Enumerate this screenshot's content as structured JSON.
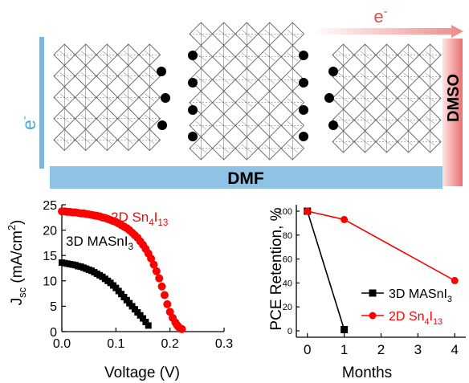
{
  "diagram": {
    "left_electron_label": "e",
    "top_electron_label": "e",
    "electron_sign": "-",
    "bottom_bar_label": "DMF",
    "right_bar_label": "DMSO",
    "colors": {
      "left_bar": "#7ab8e2",
      "bottom_bar": "#8ec3e6",
      "right_bar_gradient": [
        "#fbe3e3",
        "#ec6f6f"
      ],
      "top_arrow_gradient": [
        "#ffffff",
        "#ee8a8a"
      ],
      "electron_label_blue": "#4da6db",
      "electron_label_red": "#e84c4c",
      "lattice_stroke": "#666666",
      "dots": "#000000"
    }
  },
  "chart_data": [
    {
      "type": "scatter",
      "ylabel_main": "J",
      "ylabel_sub": "sc",
      "ylabel_rest": " (mA/cm",
      "ylabel_sup": "2",
      "ylabel_close": ")",
      "xlabel": "Voltage (V)",
      "xlim": [
        0,
        0.3
      ],
      "ylim": [
        0,
        25
      ],
      "xticks": [
        "0.0",
        "0.1",
        "0.2",
        "0.3"
      ],
      "yticks": [
        "0",
        "5",
        "10",
        "15",
        "20",
        "25"
      ],
      "annotations": [
        {
          "base": "2D Sn",
          "sub1": "4",
          "mid": "I",
          "sub2": "13",
          "color": "#ff0000"
        },
        {
          "base": "3D MASnI",
          "sub1": "3",
          "mid": "",
          "sub2": "",
          "color": "#000000"
        }
      ],
      "series": [
        {
          "color": "#ff0000",
          "marker": "circle",
          "x": [
            0.0,
            0.005,
            0.01,
            0.015,
            0.02,
            0.025,
            0.03,
            0.035,
            0.04,
            0.045,
            0.05,
            0.055,
            0.06,
            0.065,
            0.07,
            0.075,
            0.08,
            0.085,
            0.09,
            0.095,
            0.1,
            0.105,
            0.11,
            0.115,
            0.12,
            0.125,
            0.13,
            0.135,
            0.14,
            0.145,
            0.15,
            0.155,
            0.16,
            0.165,
            0.17,
            0.175,
            0.18,
            0.185,
            0.19,
            0.195,
            0.2,
            0.205,
            0.21,
            0.213,
            0.216,
            0.219,
            0.222
          ],
          "y": [
            23.7,
            23.7,
            23.6,
            23.6,
            23.5,
            23.5,
            23.4,
            23.3,
            23.3,
            23.2,
            23.1,
            23.0,
            22.9,
            22.8,
            22.7,
            22.5,
            22.4,
            22.2,
            22.0,
            21.8,
            21.6,
            21.3,
            21.0,
            20.7,
            20.4,
            20.0,
            19.5,
            19.0,
            18.5,
            17.8,
            17.1,
            16.3,
            15.4,
            14.4,
            13.2,
            11.9,
            10.5,
            8.9,
            7.2,
            5.4,
            3.9,
            2.7,
            1.8,
            1.3,
            0.9,
            0.6,
            0.5
          ]
        },
        {
          "color": "#000000",
          "marker": "square",
          "x": [
            0.0,
            0.005,
            0.01,
            0.015,
            0.02,
            0.025,
            0.03,
            0.035,
            0.04,
            0.045,
            0.05,
            0.055,
            0.06,
            0.065,
            0.07,
            0.075,
            0.08,
            0.085,
            0.09,
            0.095,
            0.1,
            0.105,
            0.11,
            0.115,
            0.12,
            0.125,
            0.13,
            0.135,
            0.14,
            0.145,
            0.15,
            0.155,
            0.16
          ],
          "y": [
            13.6,
            13.5,
            13.4,
            13.3,
            13.2,
            13.1,
            12.9,
            12.8,
            12.6,
            12.4,
            12.2,
            12.0,
            11.7,
            11.4,
            11.1,
            10.8,
            10.4,
            10.0,
            9.6,
            9.1,
            8.6,
            8.0,
            7.4,
            6.8,
            6.2,
            5.6,
            5.0,
            4.4,
            3.8,
            3.2,
            2.6,
            1.9,
            1.2
          ]
        }
      ]
    },
    {
      "type": "line",
      "ylabel": "PCE Retention, %",
      "xlabel": "Months",
      "xlim": [
        -0.3,
        4.3
      ],
      "ylim": [
        0,
        100
      ],
      "xticks": [
        "0",
        "1",
        "2",
        "3",
        "4"
      ],
      "yticks": [
        "0",
        "20",
        "40",
        "60",
        "80",
        "100"
      ],
      "series": [
        {
          "base": "3D MASnI",
          "sub1": "3",
          "mid": "",
          "sub2": "",
          "color": "#000000",
          "marker": "square",
          "x": [
            0,
            1
          ],
          "y": [
            100,
            1
          ]
        },
        {
          "base": "2D Sn",
          "sub1": "4",
          "mid": "I",
          "sub2": "13",
          "color": "#ff0000",
          "marker": "circle",
          "x": [
            0,
            1,
            4
          ],
          "y": [
            100,
            93,
            42
          ]
        }
      ]
    }
  ]
}
